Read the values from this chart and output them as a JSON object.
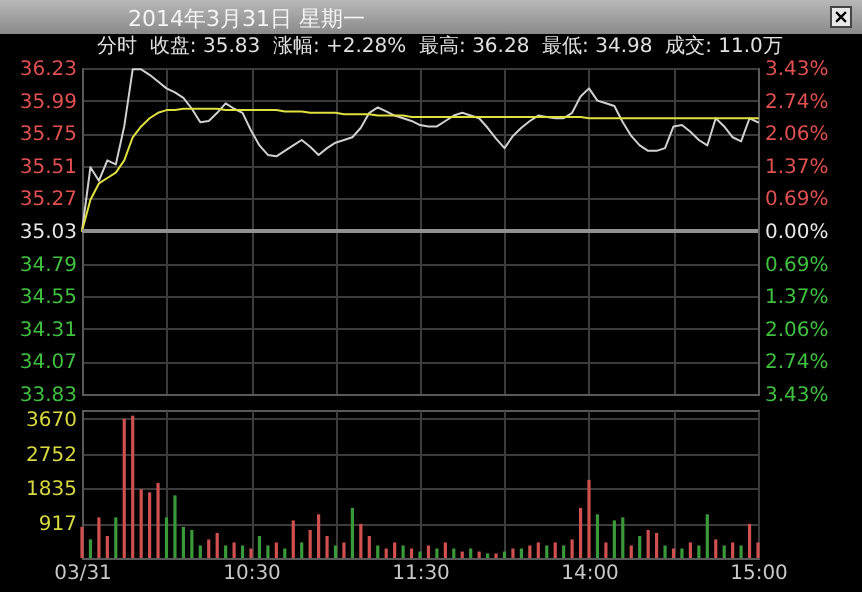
{
  "chart_data": [
    {
      "type": "line",
      "title": "2014年3月31日 星期一",
      "subtitle": "分时  收盘: 35.83  涨幅: +2.28%  最高: 36.28  最低: 34.98  成交: 11.0万",
      "categories": [
        null,
        null,
        null,
        null,
        null,
        null,
        null,
        null,
        null,
        null,
        null,
        null,
        null,
        null,
        null,
        null,
        null,
        null,
        null,
        null,
        null,
        null,
        null,
        null,
        null,
        null,
        null,
        null,
        null,
        null,
        null,
        null,
        null,
        null,
        null,
        null,
        null,
        null,
        null,
        null,
        null,
        null,
        null,
        null,
        null,
        null,
        null,
        null,
        null,
        null,
        null,
        null,
        null,
        null,
        null,
        null,
        null,
        null,
        null,
        null,
        null,
        null,
        null,
        null,
        null,
        null,
        null,
        null,
        null,
        null,
        null,
        null,
        null,
        null,
        null,
        null,
        null,
        null,
        null,
        null,
        null
      ],
      "series": [
        {
          "color": "#d0d0d0",
          "values": [
            35.03,
            35.5,
            35.4,
            35.55,
            35.52,
            35.8,
            36.22,
            36.22,
            36.18,
            36.13,
            36.08,
            36.05,
            36.01,
            35.93,
            35.83,
            35.84,
            35.9,
            35.97,
            35.93,
            35.9,
            35.77,
            35.66,
            35.59,
            35.58,
            35.62,
            35.66,
            35.7,
            35.65,
            35.59,
            35.64,
            35.68,
            35.7,
            35.72,
            35.79,
            35.9,
            35.94,
            35.91,
            35.88,
            35.86,
            35.84,
            35.81,
            35.8,
            35.8,
            35.84,
            35.88,
            35.9,
            35.88,
            35.86,
            35.79,
            35.71,
            35.64,
            35.73,
            35.79,
            35.84,
            35.88,
            35.87,
            35.86,
            35.86,
            35.9,
            36.02,
            36.08,
            35.99,
            35.97,
            35.95,
            35.83,
            35.73,
            35.66,
            35.62,
            35.62,
            35.64,
            35.8,
            35.81,
            35.76,
            35.7,
            35.66,
            35.86,
            35.8,
            35.72,
            35.69,
            35.86,
            35.83
          ]
        },
        {
          "color": "#e0e040",
          "values": [
            35.03,
            35.26,
            35.38,
            35.42,
            35.46,
            35.55,
            35.72,
            35.8,
            35.86,
            35.9,
            35.92,
            35.92,
            35.93,
            35.93,
            35.93,
            35.93,
            35.93,
            35.92,
            35.92,
            35.92,
            35.92,
            35.92,
            35.92,
            35.92,
            35.91,
            35.91,
            35.91,
            35.9,
            35.9,
            35.9,
            35.9,
            35.89,
            35.89,
            35.89,
            35.89,
            35.88,
            35.88,
            35.88,
            35.88,
            35.87,
            35.87,
            35.87,
            35.87,
            35.87,
            35.87,
            35.87,
            35.87,
            35.87,
            35.87,
            35.87,
            35.87,
            35.87,
            35.87,
            35.87,
            35.87,
            35.87,
            35.87,
            35.87,
            35.87,
            35.87,
            35.86,
            35.86,
            35.86,
            35.86,
            35.86,
            35.86,
            35.86,
            35.86,
            35.86,
            35.86,
            35.86,
            35.86,
            35.86,
            35.86,
            35.86,
            35.86,
            35.86,
            35.86,
            35.86,
            35.86,
            35.86
          ]
        }
      ],
      "ylim": [
        33.83,
        36.23
      ],
      "yticks": [
        33.83,
        34.07,
        34.31,
        34.55,
        34.79,
        35.03,
        35.27,
        35.51,
        35.75,
        35.99,
        36.23
      ],
      "y2lim": [
        -3.43,
        3.43
      ],
      "y2ticks": [
        {
          "value": -3.43,
          "label": "3.43%"
        },
        {
          "value": -2.74,
          "label": "2.74%"
        },
        {
          "value": -2.06,
          "label": "2.06%"
        },
        {
          "value": -1.37,
          "label": "1.37%"
        },
        {
          "value": -0.69,
          "label": "0.69%"
        },
        {
          "value": 0,
          "label": "0.00%"
        },
        {
          "value": 0.69,
          "label": "0.69%"
        },
        {
          "value": 1.37,
          "label": "1.37%"
        },
        {
          "value": 2.06,
          "label": "2.06%"
        },
        {
          "value": 2.74,
          "label": "2.74%"
        },
        {
          "value": 3.43,
          "label": "3.43%"
        }
      ],
      "ref_lines": [
        {
          "axis": "y",
          "value": 35.03,
          "color": "#909090"
        }
      ],
      "grid": true
    },
    {
      "type": "bar",
      "categories": [
        "03/31",
        null,
        null,
        null,
        null,
        null,
        null,
        null,
        null,
        null,
        null,
        null,
        null,
        null,
        null,
        null,
        null,
        null,
        null,
        null,
        "10:30",
        null,
        null,
        null,
        null,
        null,
        null,
        null,
        null,
        null,
        null,
        null,
        null,
        null,
        null,
        null,
        null,
        null,
        null,
        null,
        "11:30",
        null,
        null,
        null,
        null,
        null,
        null,
        null,
        null,
        null,
        null,
        null,
        null,
        null,
        null,
        null,
        null,
        null,
        null,
        null,
        "14:00",
        null,
        null,
        null,
        null,
        null,
        null,
        null,
        null,
        null,
        null,
        null,
        null,
        null,
        null,
        null,
        null,
        null,
        null,
        null,
        "15:00"
      ],
      "values": [
        820,
        490,
        1070,
        580,
        1070,
        3670,
        3750,
        1810,
        1730,
        1980,
        1070,
        1650,
        820,
        740,
        330,
        490,
        660,
        330,
        410,
        330,
        250,
        580,
        330,
        410,
        250,
        990,
        410,
        740,
        1150,
        580,
        330,
        410,
        1320,
        900,
        580,
        330,
        250,
        410,
        330,
        250,
        170,
        330,
        250,
        410,
        250,
        170,
        250,
        170,
        120,
        120,
        170,
        250,
        250,
        330,
        410,
        330,
        410,
        330,
        490,
        1320,
        2060,
        1150,
        410,
        990,
        1070,
        330,
        580,
        740,
        660,
        330,
        250,
        250,
        410,
        330,
        1150,
        490,
        330,
        410,
        330,
        900,
        410
      ],
      "colors": [
        "#d05050",
        "#3a9a3a",
        "#d05050",
        "#d05050",
        "#3a9a3a",
        "#d05050",
        "#d05050",
        "#d05050",
        "#d05050",
        "#d05050",
        "#3a9a3a",
        "#3a9a3a",
        "#3a9a3a",
        "#3a9a3a",
        "#3a9a3a",
        "#d05050",
        "#d05050",
        "#3a9a3a",
        "#d05050",
        "#3a9a3a",
        "#d05050",
        "#3a9a3a",
        "#3a9a3a",
        "#d05050",
        "#3a9a3a",
        "#d05050",
        "#3a9a3a",
        "#d05050",
        "#d05050",
        "#d05050",
        "#3a9a3a",
        "#d05050",
        "#3a9a3a",
        "#d05050",
        "#d05050",
        "#3a9a3a",
        "#d05050",
        "#d05050",
        "#3a9a3a",
        "#d05050",
        "#3a9a3a",
        "#d05050",
        "#3a9a3a",
        "#d05050",
        "#3a9a3a",
        "#d05050",
        "#3a9a3a",
        "#d05050",
        "#3a9a3a",
        "#d05050",
        "#3a9a3a",
        "#d05050",
        "#3a9a3a",
        "#d05050",
        "#d05050",
        "#3a9a3a",
        "#d05050",
        "#3a9a3a",
        "#d05050",
        "#d05050",
        "#d05050",
        "#3a9a3a",
        "#d05050",
        "#3a9a3a",
        "#3a9a3a",
        "#d05050",
        "#3a9a3a",
        "#d05050",
        "#d05050",
        "#3a9a3a",
        "#d05050",
        "#3a9a3a",
        "#d05050",
        "#3a9a3a",
        "#3a9a3a",
        "#d05050",
        "#3a9a3a",
        "#d05050",
        "#3a9a3a",
        "#d05050",
        "#d05050"
      ],
      "ylim": [
        0,
        3900
      ],
      "yticks": [
        917,
        1835,
        2752,
        3670
      ],
      "grid": true
    }
  ]
}
